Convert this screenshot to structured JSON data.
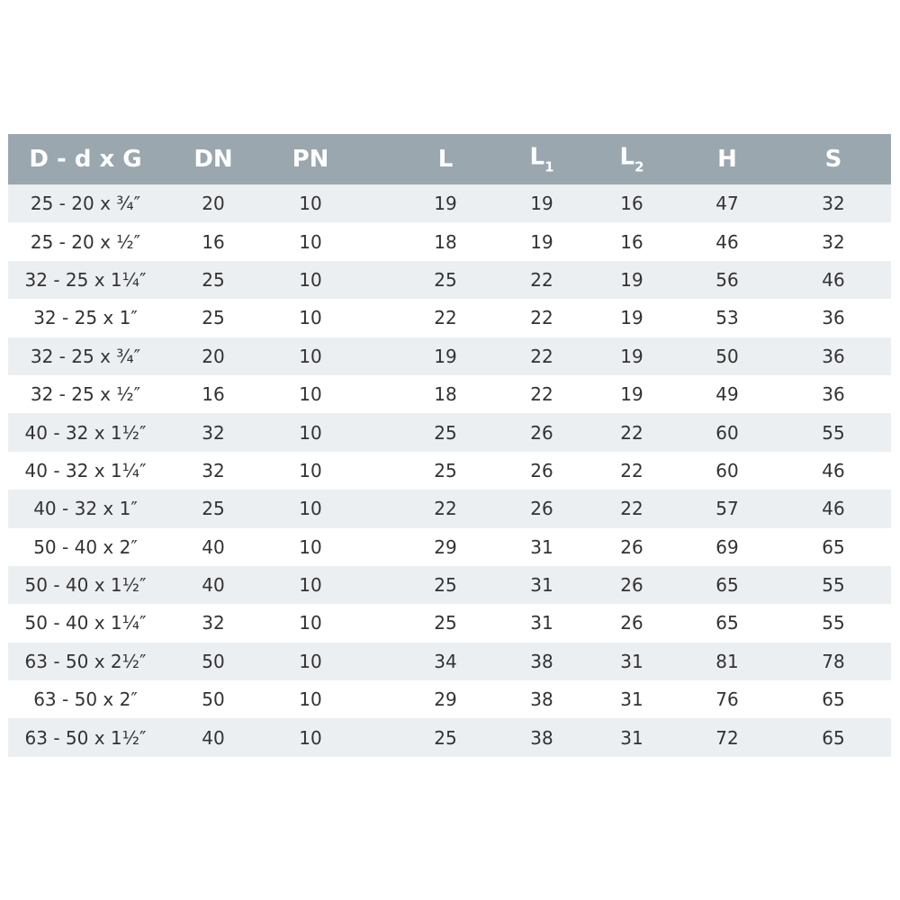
{
  "colors": {
    "header_bg": "#9aa7ae",
    "stripe_bg": "#eceff1",
    "text": "#333333"
  },
  "table": {
    "headers": [
      {
        "main": "D - d x G",
        "sub": ""
      },
      {
        "main": "DN",
        "sub": ""
      },
      {
        "main": "PN",
        "sub": ""
      },
      {
        "main": "L",
        "sub": ""
      },
      {
        "main": "L",
        "sub": "1"
      },
      {
        "main": "L",
        "sub": "2"
      },
      {
        "main": "H",
        "sub": ""
      },
      {
        "main": "S",
        "sub": ""
      }
    ],
    "rows": [
      [
        "25 - 20 x ¾″",
        "20",
        "10",
        "19",
        "19",
        "16",
        "47",
        "32"
      ],
      [
        "25 - 20 x ½″",
        "16",
        "10",
        "18",
        "19",
        "16",
        "46",
        "32"
      ],
      [
        "32 - 25 x 1¼″",
        "25",
        "10",
        "25",
        "22",
        "19",
        "56",
        "46"
      ],
      [
        "32 - 25 x 1″",
        "25",
        "10",
        "22",
        "22",
        "19",
        "53",
        "36"
      ],
      [
        "32 - 25 x ¾″",
        "20",
        "10",
        "19",
        "22",
        "19",
        "50",
        "36"
      ],
      [
        "32 - 25 x ½″",
        "16",
        "10",
        "18",
        "22",
        "19",
        "49",
        "36"
      ],
      [
        "40 - 32 x 1½″",
        "32",
        "10",
        "25",
        "26",
        "22",
        "60",
        "55"
      ],
      [
        "40 - 32 x 1¼″",
        "32",
        "10",
        "25",
        "26",
        "22",
        "60",
        "46"
      ],
      [
        "40 - 32 x 1″",
        "25",
        "10",
        "22",
        "26",
        "22",
        "57",
        "46"
      ],
      [
        "50 - 40 x 2″",
        "40",
        "10",
        "29",
        "31",
        "26",
        "69",
        "65"
      ],
      [
        "50 - 40 x 1½″",
        "40",
        "10",
        "25",
        "31",
        "26",
        "65",
        "55"
      ],
      [
        "50 - 40 x 1¼″",
        "32",
        "10",
        "25",
        "31",
        "26",
        "65",
        "55"
      ],
      [
        "63 - 50 x 2½″",
        "50",
        "10",
        "34",
        "38",
        "31",
        "81",
        "78"
      ],
      [
        "63 - 50 x 2″",
        "50",
        "10",
        "29",
        "38",
        "31",
        "76",
        "65"
      ],
      [
        "63 - 50 x 1½″",
        "40",
        "10",
        "25",
        "38",
        "31",
        "72",
        "65"
      ]
    ]
  }
}
